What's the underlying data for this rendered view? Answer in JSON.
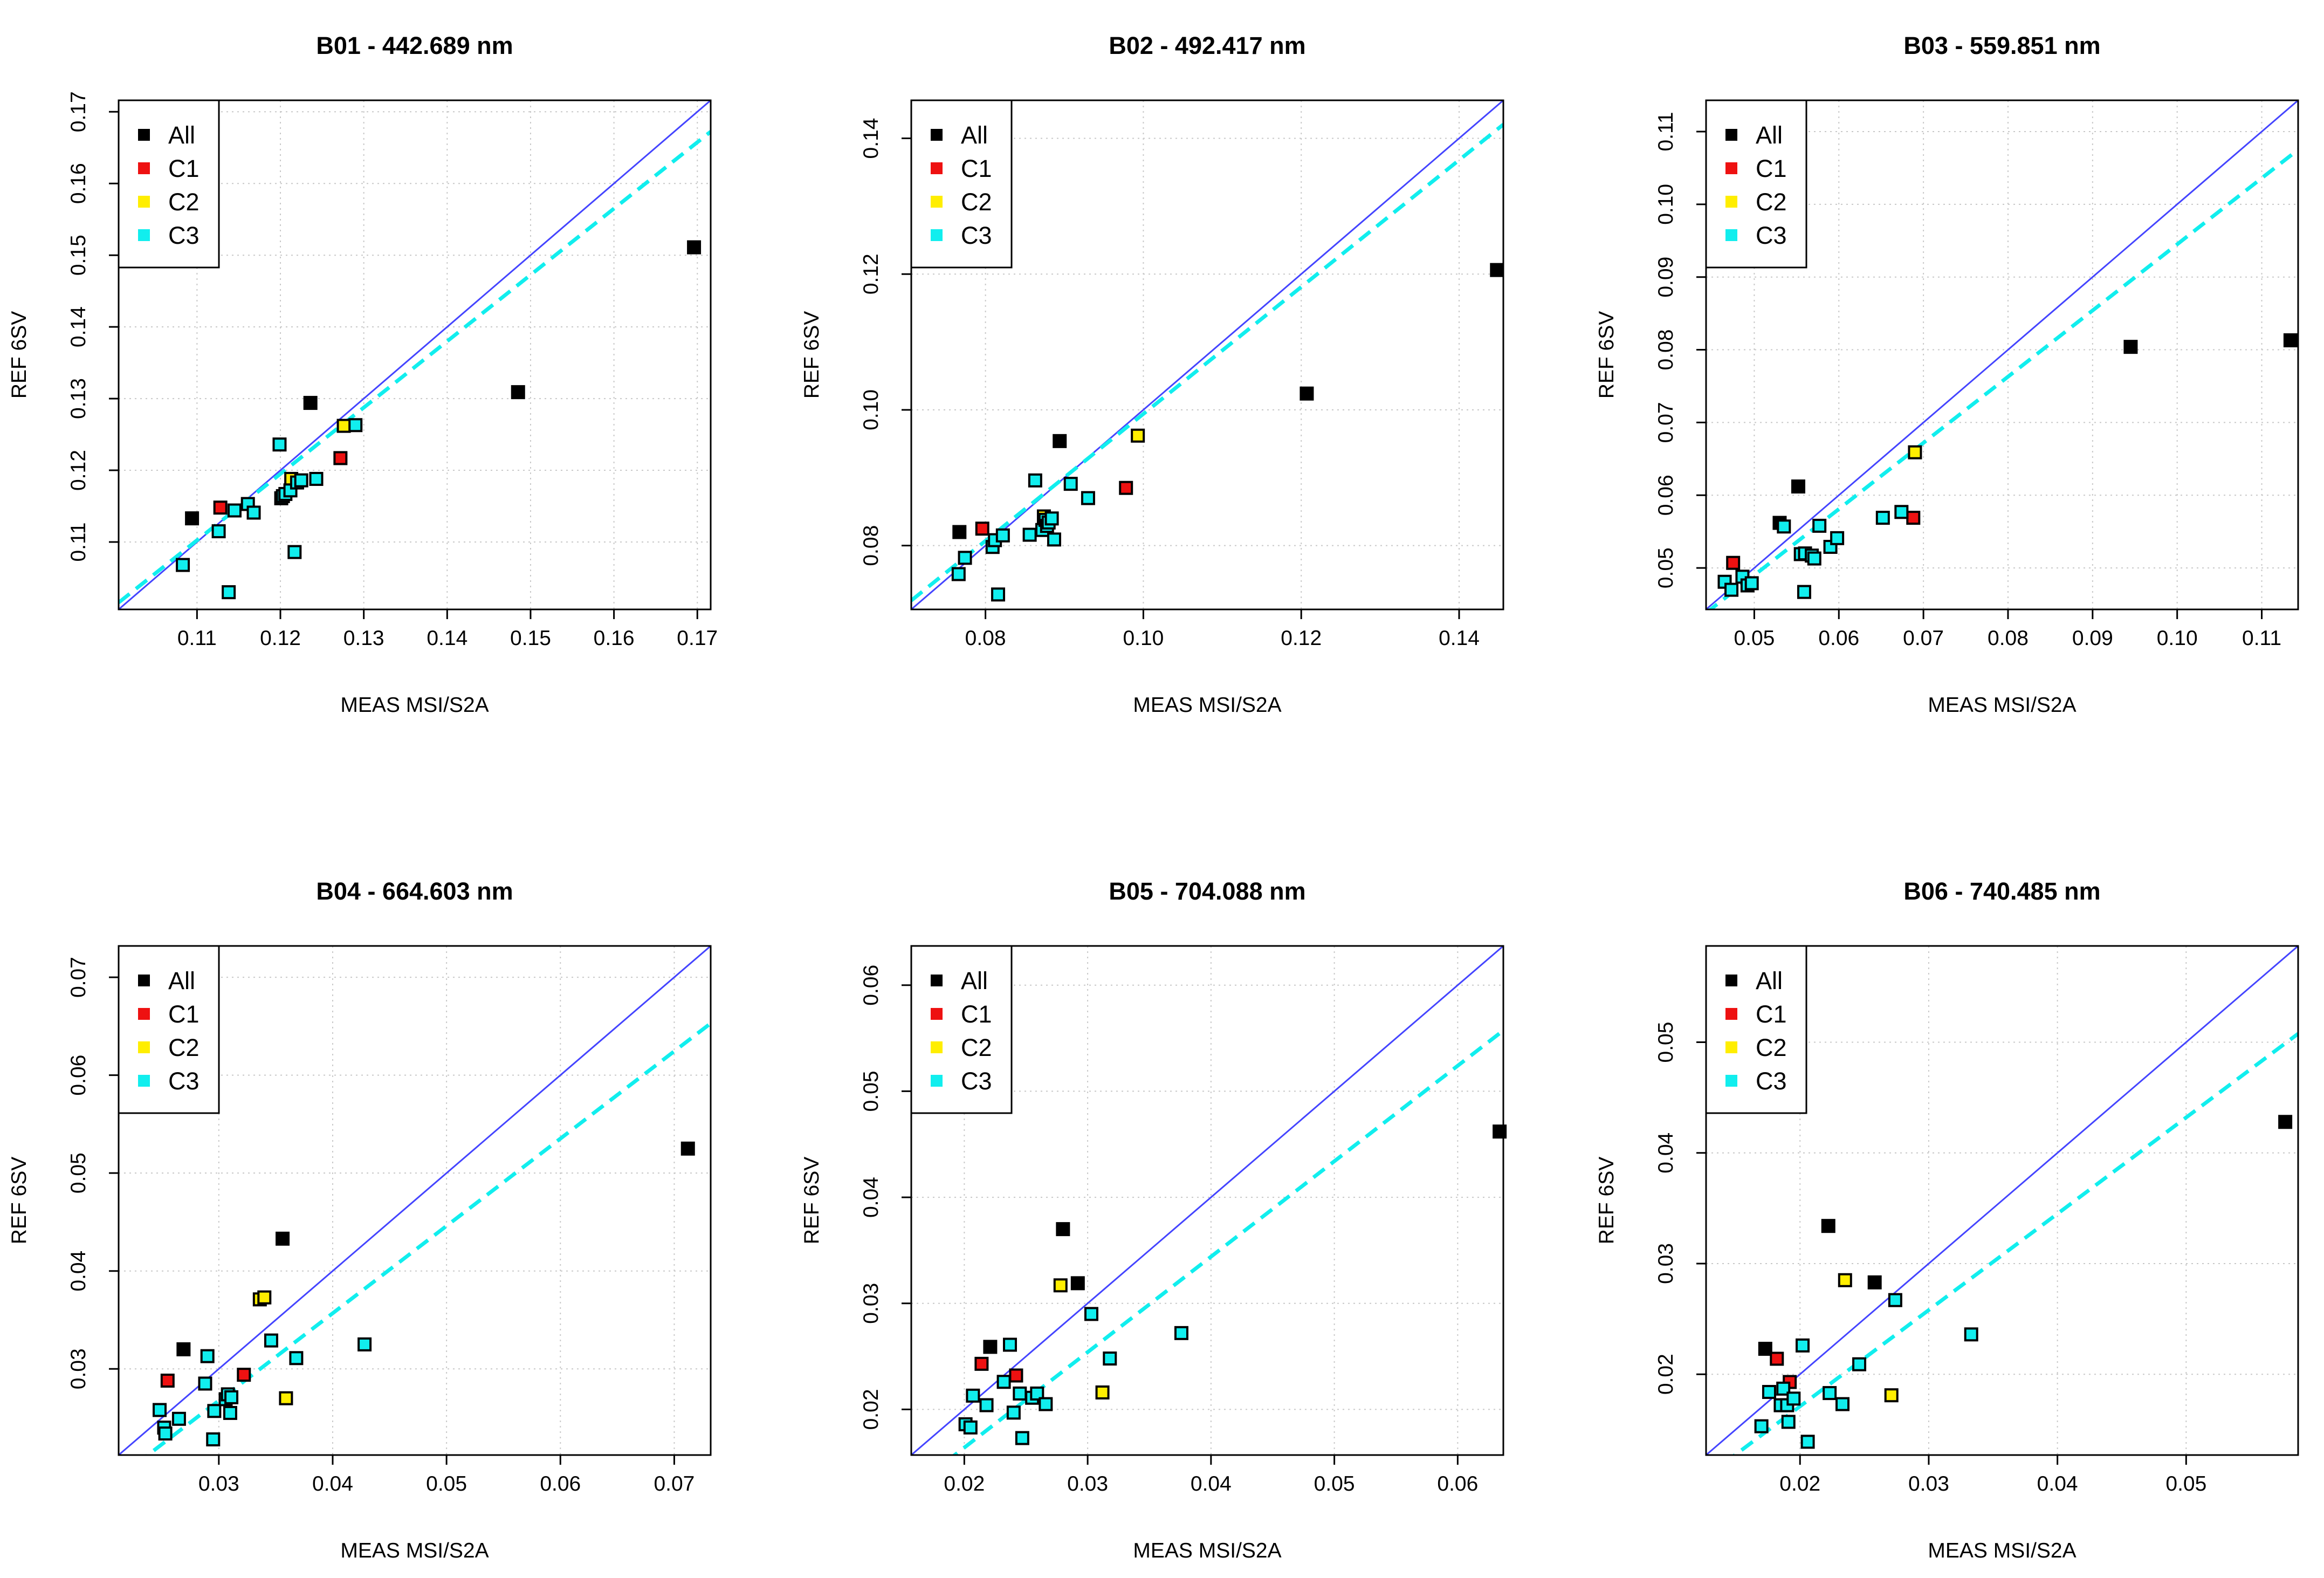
{
  "figure": {
    "colors": {
      "All": "#000000",
      "C1": "#ee1111",
      "C2": "#ffee00",
      "C3": "#11eeee"
    },
    "line_colors": {
      "identity": "#4444ff",
      "fit": "#11eeee"
    }
  },
  "chart_data": [
    {
      "type": "scatter",
      "title": "B01 -  442.689 nm",
      "xlabel": "MEAS MSI/S2A",
      "ylabel": "REF 6SV",
      "xlim": [
        0.1006,
        0.1716
      ],
      "ylim": [
        0.1006,
        0.1716
      ],
      "xticks": [
        0.11,
        0.12,
        0.13,
        0.14,
        0.15,
        0.16,
        0.17
      ],
      "yticks": [
        0.11,
        0.12,
        0.13,
        0.14,
        0.15,
        0.16,
        0.17
      ],
      "tick_labels": [
        "0.11",
        "0.12",
        "0.13",
        "0.14",
        "0.15",
        "0.16",
        "0.17"
      ],
      "legend": [
        "All",
        "C1",
        "C2",
        "C3"
      ],
      "fit_line": {
        "slope": 0.925,
        "intercept": 0.0085
      },
      "series": [
        {
          "name": "All",
          "x": [
            0.1094,
            0.1236,
            0.1485,
            0.1696
          ],
          "y": [
            0.1133,
            0.1294,
            0.1309,
            0.1511
          ]
        },
        {
          "name": "C1",
          "x": [
            0.1128,
            0.1272
          ],
          "y": [
            0.1148,
            0.1217
          ]
        },
        {
          "name": "C2",
          "x": [
            0.1213,
            0.1276
          ],
          "y": [
            0.1188,
            0.1262
          ]
        },
        {
          "name": "C3",
          "x": [
            0.1083,
            0.1126,
            0.1138,
            0.1145,
            0.1161,
            0.1168,
            0.1201,
            0.1199,
            0.1203,
            0.1206,
            0.1212,
            0.1217,
            0.122,
            0.1225,
            0.1243,
            0.129
          ],
          "y": [
            0.1068,
            0.1115,
            0.103,
            0.1144,
            0.1153,
            0.1141,
            0.1161,
            0.1236,
            0.1164,
            0.1167,
            0.1172,
            0.1086,
            0.1183,
            0.1186,
            0.1188,
            0.1263
          ]
        }
      ]
    },
    {
      "type": "scatter",
      "title": "B02 -  492.417 nm",
      "xlabel": "MEAS MSI/S2A",
      "ylabel": "REF 6SV",
      "xlim": [
        0.0706,
        0.1456
      ],
      "ylim": [
        0.0706,
        0.1456
      ],
      "xticks": [
        0.08,
        0.1,
        0.12,
        0.14
      ],
      "yticks": [
        0.08,
        0.1,
        0.12,
        0.14
      ],
      "tick_labels": [
        "0.08",
        "0.10",
        "0.12",
        "0.14"
      ],
      "legend": [
        "All",
        "C1",
        "C2",
        "C3"
      ],
      "fit_line": {
        "slope": 0.935,
        "intercept": 0.0059
      },
      "series": [
        {
          "name": "All",
          "x": [
            0.0767,
            0.0894,
            0.1207,
            0.1448
          ],
          "y": [
            0.082,
            0.0954,
            0.1024,
            0.1206
          ]
        },
        {
          "name": "C1",
          "x": [
            0.0796,
            0.0978
          ],
          "y": [
            0.0825,
            0.0885
          ]
        },
        {
          "name": "C2",
          "x": [
            0.0874,
            0.0993
          ],
          "y": [
            0.0843,
            0.0962
          ]
        },
        {
          "name": "C3",
          "x": [
            0.0766,
            0.0774,
            0.0809,
            0.0812,
            0.0816,
            0.0822,
            0.0856,
            0.0863,
            0.0872,
            0.0876,
            0.0878,
            0.088,
            0.0884,
            0.0887,
            0.0908,
            0.093
          ],
          "y": [
            0.0758,
            0.0782,
            0.0798,
            0.0808,
            0.0728,
            0.0815,
            0.0816,
            0.0896,
            0.0823,
            0.0838,
            0.0829,
            0.0834,
            0.084,
            0.0809,
            0.0891,
            0.087
          ]
        }
      ]
    },
    {
      "type": "scatter",
      "title": "B03 -  559.851 nm",
      "xlabel": "MEAS MSI/S2A",
      "ylabel": "REF 6SV",
      "xlim": [
        0.0443,
        0.1143
      ],
      "ylim": [
        0.0443,
        0.1143
      ],
      "xticks": [
        0.05,
        0.06,
        0.07,
        0.08,
        0.09,
        0.1,
        0.11
      ],
      "yticks": [
        0.05,
        0.06,
        0.07,
        0.08,
        0.09,
        0.1,
        0.11
      ],
      "tick_labels": [
        "0.05",
        "0.06",
        "0.07",
        "0.08",
        "0.09",
        "0.10",
        "0.11"
      ],
      "legend": [
        "All",
        "C1",
        "C2",
        "C3"
      ],
      "fit_line": {
        "slope": 0.91,
        "intercept": 0.0035
      },
      "series": [
        {
          "name": "All",
          "x": [
            0.053,
            0.0552,
            0.0945,
            0.1134
          ],
          "y": [
            0.0562,
            0.0612,
            0.0804,
            0.0813
          ]
        },
        {
          "name": "C1",
          "x": [
            0.0475,
            0.0688
          ],
          "y": [
            0.0507,
            0.0569
          ]
        },
        {
          "name": "C2",
          "x": [
            0.069
          ],
          "y": [
            0.0659
          ]
        },
        {
          "name": "C3",
          "x": [
            0.0465,
            0.0473,
            0.0486,
            0.0492,
            0.0497,
            0.0535,
            0.0555,
            0.056,
            0.0568,
            0.0571,
            0.0577,
            0.059,
            0.0598,
            0.0652,
            0.0674,
            0.0559
          ],
          "y": [
            0.0481,
            0.047,
            0.0488,
            0.0476,
            0.0479,
            0.0557,
            0.0519,
            0.052,
            0.0517,
            0.0513,
            0.0558,
            0.0529,
            0.0541,
            0.0569,
            0.0577,
            0.0467
          ]
        }
      ]
    },
    {
      "type": "scatter",
      "title": "B04 -  664.603 nm",
      "xlabel": "MEAS MSI/S2A",
      "ylabel": "REF 6SV",
      "xlim": [
        0.0212,
        0.0732
      ],
      "ylim": [
        0.0212,
        0.0732
      ],
      "xticks": [
        0.03,
        0.04,
        0.05,
        0.06,
        0.07
      ],
      "yticks": [
        0.03,
        0.04,
        0.05,
        0.06,
        0.07
      ],
      "tick_labels": [
        "0.03",
        "0.04",
        "0.05",
        "0.06",
        "0.07"
      ],
      "legend": [
        "All",
        "C1",
        "C2",
        "C3"
      ],
      "fit_line": {
        "slope": 0.892,
        "intercept": 0.0
      },
      "series": [
        {
          "name": "All",
          "x": [
            0.0269,
            0.0356,
            0.0712
          ],
          "y": [
            0.032,
            0.0433,
            0.0525
          ]
        },
        {
          "name": "C1",
          "x": [
            0.0255,
            0.0322
          ],
          "y": [
            0.0288,
            0.0294
          ]
        },
        {
          "name": "C2",
          "x": [
            0.0336,
            0.034,
            0.0359
          ],
          "y": [
            0.0371,
            0.0373,
            0.027
          ]
        },
        {
          "name": "C3",
          "x": [
            0.0248,
            0.0252,
            0.0253,
            0.0265,
            0.0288,
            0.029,
            0.0295,
            0.0296,
            0.0306,
            0.0308,
            0.031,
            0.0311,
            0.0346,
            0.0368,
            0.0428
          ],
          "y": [
            0.0258,
            0.024,
            0.0234,
            0.0249,
            0.0285,
            0.0313,
            0.0228,
            0.0257,
            0.0269,
            0.0274,
            0.0255,
            0.0271,
            0.0329,
            0.0311,
            0.0325
          ]
        }
      ]
    },
    {
      "type": "scatter",
      "title": "B05 -  704.088 nm",
      "xlabel": "MEAS MSI/S2A",
      "ylabel": "REF 6SV",
      "xlim": [
        0.0157,
        0.0637
      ],
      "ylim": [
        0.0157,
        0.0637
      ],
      "xticks": [
        0.02,
        0.03,
        0.04,
        0.05,
        0.06
      ],
      "yticks": [
        0.02,
        0.03,
        0.04,
        0.05,
        0.06
      ],
      "tick_labels": [
        "0.02",
        "0.03",
        "0.04",
        "0.05",
        "0.06"
      ],
      "legend": [
        "All",
        "C1",
        "C2",
        "C3"
      ],
      "fit_line": {
        "slope": 0.9,
        "intercept": -0.0016
      },
      "series": [
        {
          "name": "All",
          "x": [
            0.0221,
            0.028,
            0.0292,
            0.0634
          ],
          "y": [
            0.0259,
            0.037,
            0.0319,
            0.0462
          ]
        },
        {
          "name": "C1",
          "x": [
            0.0214,
            0.0242
          ],
          "y": [
            0.0243,
            0.0232
          ]
        },
        {
          "name": "C2",
          "x": [
            0.0278,
            0.0312
          ],
          "y": [
            0.0317,
            0.0216
          ]
        },
        {
          "name": "C3",
          "x": [
            0.0201,
            0.0205,
            0.0207,
            0.0218,
            0.0232,
            0.0237,
            0.024,
            0.0245,
            0.0247,
            0.0255,
            0.0259,
            0.0266,
            0.0303,
            0.0318,
            0.0376
          ],
          "y": [
            0.0186,
            0.0183,
            0.0213,
            0.0204,
            0.0226,
            0.0261,
            0.0197,
            0.0215,
            0.0173,
            0.0211,
            0.0215,
            0.0205,
            0.029,
            0.0248,
            0.0272
          ]
        }
      ]
    },
    {
      "type": "scatter",
      "title": "B06 -  740.485 nm",
      "xlabel": "MEAS MSI/S2A",
      "ylabel": "REF 6SV",
      "xlim": [
        0.0127,
        0.0587
      ],
      "ylim": [
        0.0127,
        0.0587
      ],
      "xticks": [
        0.02,
        0.03,
        0.04,
        0.05
      ],
      "yticks": [
        0.02,
        0.03,
        0.04,
        0.05
      ],
      "tick_labels": [
        "0.02",
        "0.03",
        "0.04",
        "0.05"
      ],
      "legend": [
        "All",
        "C1",
        "C2",
        "C3"
      ],
      "fit_line": {
        "slope": 0.87,
        "intercept": -0.0003
      },
      "series": [
        {
          "name": "All",
          "x": [
            0.0173,
            0.0222,
            0.0258,
            0.0577
          ],
          "y": [
            0.0223,
            0.0334,
            0.0283,
            0.0428
          ]
        },
        {
          "name": "C1",
          "x": [
            0.0182,
            0.0192
          ],
          "y": [
            0.0214,
            0.0193
          ]
        },
        {
          "name": "C2",
          "x": [
            0.0235,
            0.0271
          ],
          "y": [
            0.0285,
            0.0181
          ]
        },
        {
          "name": "C3",
          "x": [
            0.017,
            0.0176,
            0.0185,
            0.0187,
            0.019,
            0.0191,
            0.0195,
            0.0202,
            0.0206,
            0.0223,
            0.0233,
            0.0246,
            0.0274,
            0.0333
          ],
          "y": [
            0.0153,
            0.0184,
            0.0172,
            0.0187,
            0.0172,
            0.0157,
            0.0178,
            0.0226,
            0.0139,
            0.0183,
            0.0173,
            0.0209,
            0.0267,
            0.0236
          ]
        }
      ]
    }
  ]
}
